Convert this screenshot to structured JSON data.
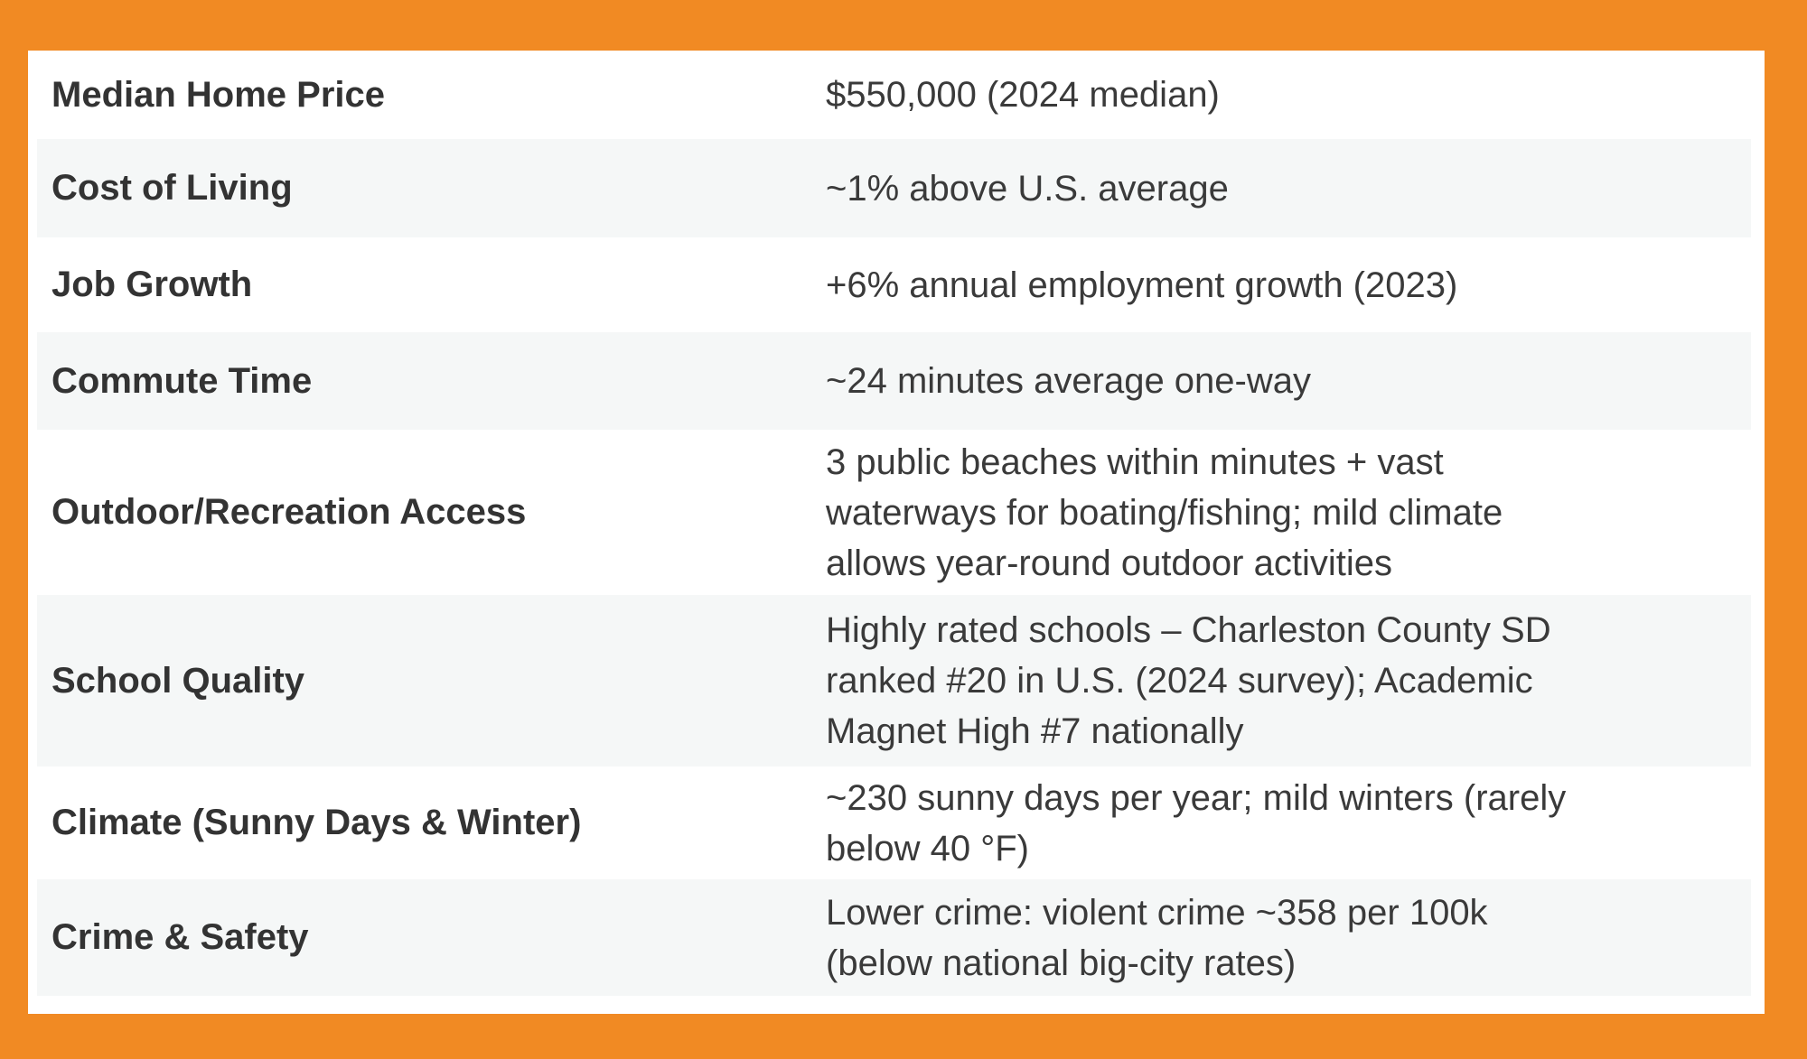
{
  "table": {
    "rows": [
      [
        "Median Home Price",
        [
          "$550,000 (2024 median)"
        ]
      ],
      [
        "Cost of Living",
        [
          "~1% above U.S. average"
        ]
      ],
      [
        "Job Growth",
        [
          "+6% annual employment growth (2023)"
        ]
      ],
      [
        "Commute Time",
        [
          "~24 minutes average one-way"
        ]
      ],
      [
        "Outdoor/Recreation Access",
        [
          "3 public beaches within minutes + vast",
          "waterways for boating/fishing; mild climate",
          "allows year-round outdoor activities"
        ]
      ],
      [
        "School Quality",
        [
          "Highly rated schools – Charleston County SD",
          "ranked #20 in U.S. (2024 survey); Academic",
          "Magnet High #7 nationally"
        ]
      ],
      [
        "Climate (Sunny Days & Winter)",
        [
          "~230 sunny days per year; mild winters (rarely",
          "below 40 °F)"
        ]
      ],
      [
        "Crime & Safety",
        [
          "Lower crime: violent crime ~358 per 100k",
          "(below national big-city rates)"
        ]
      ]
    ]
  }
}
